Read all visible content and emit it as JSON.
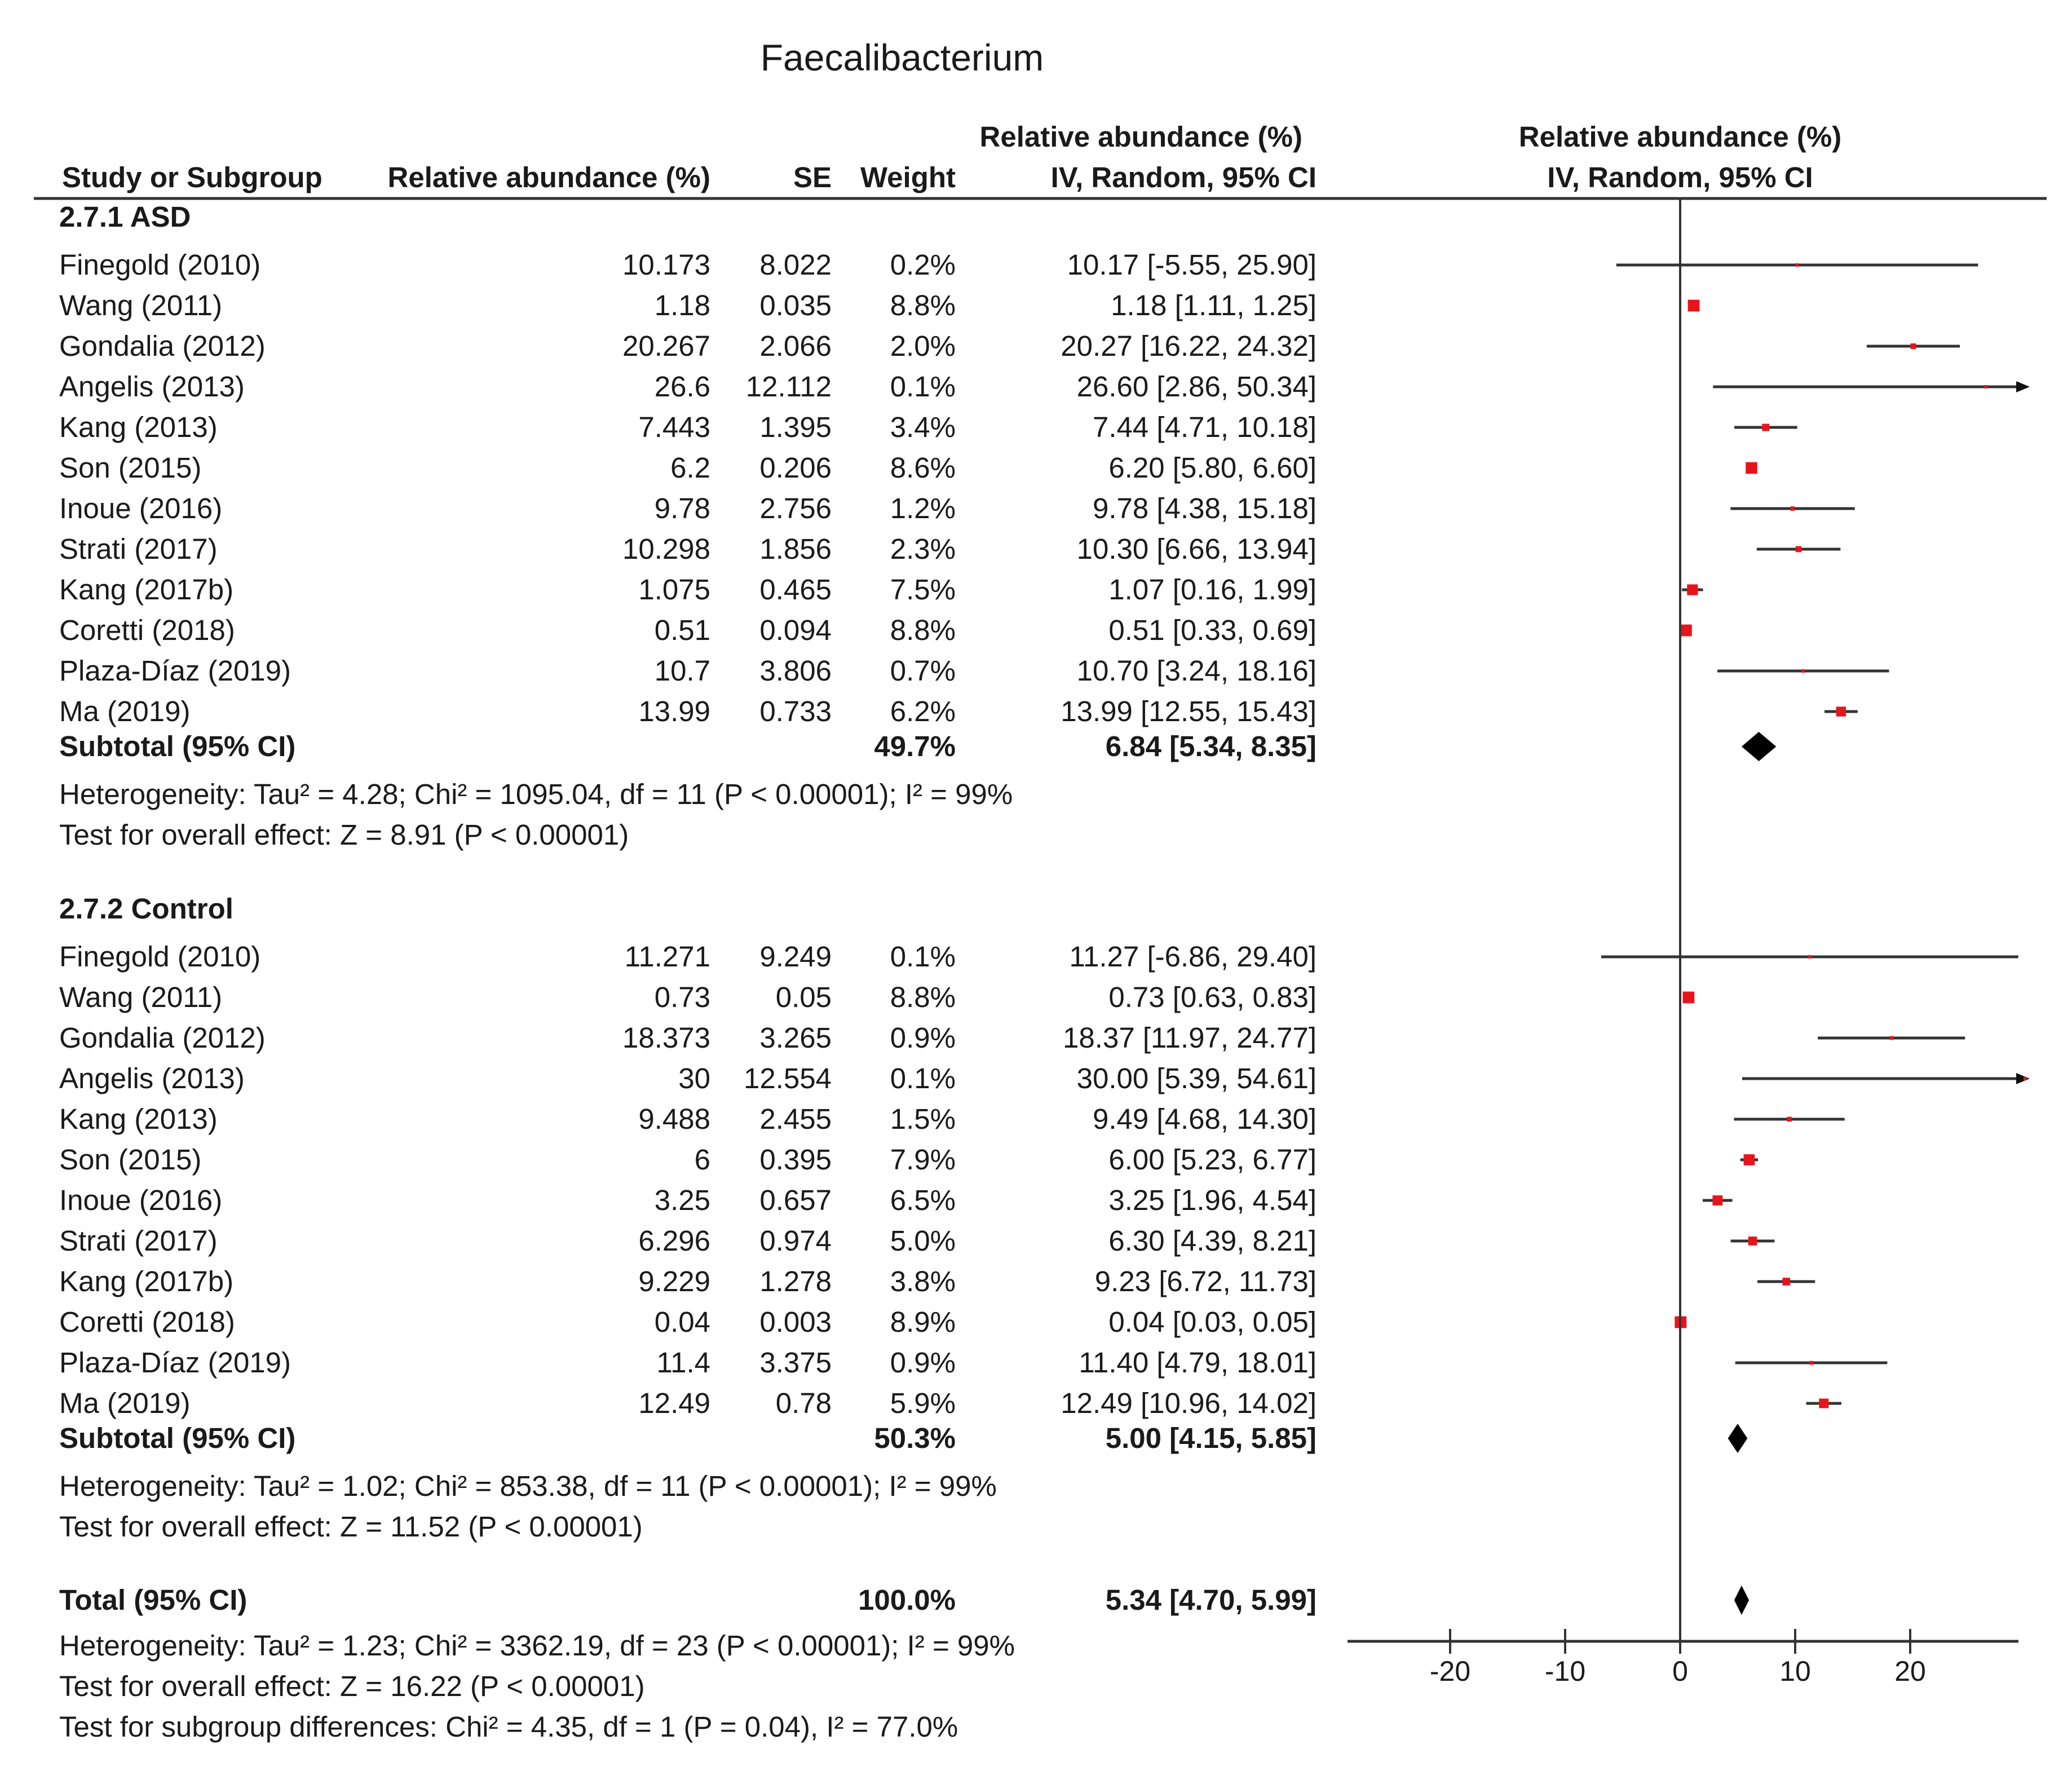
{
  "title": "Faecalibacterium",
  "header": {
    "study": "Study or Subgroup",
    "mean": "Relative abundance (%)",
    "se": "SE",
    "weight": "Weight",
    "ci_top": "Relative abundance (%)",
    "ci_bottom": "IV, Random, 95% CI",
    "plot_top": "Relative abundance (%)",
    "plot_bottom": "IV, Random, 95% CI"
  },
  "groups": [
    {
      "name": "2.7.1 ASD",
      "studies": [
        {
          "study": "Finegold (2010)",
          "mean": "10.173",
          "se": "8.022",
          "weight": "0.2%",
          "ci": "10.17 [-5.55, 25.90]"
        },
        {
          "study": "Wang (2011)",
          "mean": "1.18",
          "se": "0.035",
          "weight": "8.8%",
          "ci": "1.18 [1.11, 1.25]"
        },
        {
          "study": "Gondalia (2012)",
          "mean": "20.267",
          "se": "2.066",
          "weight": "2.0%",
          "ci": "20.27 [16.22, 24.32]"
        },
        {
          "study": "Angelis (2013)",
          "mean": "26.6",
          "se": "12.112",
          "weight": "0.1%",
          "ci": "26.60 [2.86, 50.34]"
        },
        {
          "study": "Kang (2013)",
          "mean": "7.443",
          "se": "1.395",
          "weight": "3.4%",
          "ci": "7.44 [4.71, 10.18]"
        },
        {
          "study": "Son (2015)",
          "mean": "6.2",
          "se": "0.206",
          "weight": "8.6%",
          "ci": "6.20 [5.80, 6.60]"
        },
        {
          "study": "Inoue (2016)",
          "mean": "9.78",
          "se": "2.756",
          "weight": "1.2%",
          "ci": "9.78 [4.38, 15.18]"
        },
        {
          "study": "Strati (2017)",
          "mean": "10.298",
          "se": "1.856",
          "weight": "2.3%",
          "ci": "10.30 [6.66, 13.94]"
        },
        {
          "study": "Kang (2017b)",
          "mean": "1.075",
          "se": "0.465",
          "weight": "7.5%",
          "ci": "1.07 [0.16, 1.99]"
        },
        {
          "study": "Coretti (2018)",
          "mean": "0.51",
          "se": "0.094",
          "weight": "8.8%",
          "ci": "0.51 [0.33, 0.69]"
        },
        {
          "study": "Plaza-Díaz (2019)",
          "mean": "10.7",
          "se": "3.806",
          "weight": "0.7%",
          "ci": "10.70 [3.24, 18.16]"
        },
        {
          "study": "Ma (2019)",
          "mean": "13.99",
          "se": "0.733",
          "weight": "6.2%",
          "ci": "13.99 [12.55, 15.43]"
        }
      ],
      "subtotal": {
        "label": "Subtotal (95% CI)",
        "weight": "49.7%",
        "ci": "6.84 [5.34, 8.35]"
      },
      "heterogeneity": "Heterogeneity: Tau² = 4.28; Chi² = 1095.04, df = 11 (P < 0.00001); I² = 99%",
      "overall": "Test for overall effect: Z = 8.91 (P < 0.00001)"
    },
    {
      "name": "2.7.2 Control",
      "studies": [
        {
          "study": "Finegold (2010)",
          "mean": "11.271",
          "se": "9.249",
          "weight": "0.1%",
          "ci": "11.27 [-6.86, 29.40]"
        },
        {
          "study": "Wang (2011)",
          "mean": "0.73",
          "se": "0.05",
          "weight": "8.8%",
          "ci": "0.73 [0.63, 0.83]"
        },
        {
          "study": "Gondalia (2012)",
          "mean": "18.373",
          "se": "3.265",
          "weight": "0.9%",
          "ci": "18.37 [11.97, 24.77]"
        },
        {
          "study": "Angelis (2013)",
          "mean": "30",
          "se": "12.554",
          "weight": "0.1%",
          "ci": "30.00 [5.39, 54.61]"
        },
        {
          "study": "Kang (2013)",
          "mean": "9.488",
          "se": "2.455",
          "weight": "1.5%",
          "ci": "9.49 [4.68, 14.30]"
        },
        {
          "study": "Son (2015)",
          "mean": "6",
          "se": "0.395",
          "weight": "7.9%",
          "ci": "6.00 [5.23, 6.77]"
        },
        {
          "study": "Inoue (2016)",
          "mean": "3.25",
          "se": "0.657",
          "weight": "6.5%",
          "ci": "3.25 [1.96, 4.54]"
        },
        {
          "study": "Strati (2017)",
          "mean": "6.296",
          "se": "0.974",
          "weight": "5.0%",
          "ci": "6.30 [4.39, 8.21]"
        },
        {
          "study": "Kang (2017b)",
          "mean": "9.229",
          "se": "1.278",
          "weight": "3.8%",
          "ci": "9.23 [6.72, 11.73]"
        },
        {
          "study": "Coretti (2018)",
          "mean": "0.04",
          "se": "0.003",
          "weight": "8.9%",
          "ci": "0.04 [0.03, 0.05]"
        },
        {
          "study": "Plaza-Díaz (2019)",
          "mean": "11.4",
          "se": "3.375",
          "weight": "0.9%",
          "ci": "11.40 [4.79, 18.01]"
        },
        {
          "study": "Ma (2019)",
          "mean": "12.49",
          "se": "0.78",
          "weight": "5.9%",
          "ci": "12.49 [10.96, 14.02]"
        }
      ],
      "subtotal": {
        "label": "Subtotal (95% CI)",
        "weight": "50.3%",
        "ci": "5.00 [4.15, 5.85]"
      },
      "heterogeneity": "Heterogeneity: Tau² = 1.02; Chi² = 853.38, df = 11 (P < 0.00001); I² = 99%",
      "overall": "Test for overall effect: Z = 11.52 (P < 0.00001)"
    }
  ],
  "total": {
    "label": "Total (95% CI)",
    "weight": "100.0%",
    "ci": "5.34 [4.70, 5.99]",
    "heterogeneity": "Heterogeneity: Tau² = 1.23; Chi² = 3362.19, df = 23 (P < 0.00001); I² = 99%",
    "overall": "Test for overall effect: Z = 16.22 (P < 0.00001)",
    "subgroup": "Test for subgroup differences: Chi² = 4.35, df = 1 (P = 0.04), I² = 77.0%"
  },
  "chart_data": {
    "type": "forest",
    "title": "Faecalibacterium",
    "xlabel": "Relative abundance (%) IV, Random, 95% CI",
    "xlim": [
      -30,
      30
    ],
    "xticks": [
      -20,
      -10,
      0,
      10,
      20
    ],
    "tick_labels": [
      "-20",
      "-10",
      "0",
      "10",
      "20"
    ],
    "colors": {
      "marker": "#e8141c",
      "line": "#333333",
      "diamond": "#000000"
    },
    "series": [
      {
        "name": "2.7.1 ASD",
        "points": [
          {
            "mean": 10.17,
            "lo": -5.55,
            "hi": 25.9,
            "weight": 0.2
          },
          {
            "mean": 1.18,
            "lo": 1.11,
            "hi": 1.25,
            "weight": 8.8
          },
          {
            "mean": 20.27,
            "lo": 16.22,
            "hi": 24.32,
            "weight": 2.0
          },
          {
            "mean": 26.6,
            "lo": 2.86,
            "hi": 50.34,
            "weight": 0.1
          },
          {
            "mean": 7.44,
            "lo": 4.71,
            "hi": 10.18,
            "weight": 3.4
          },
          {
            "mean": 6.2,
            "lo": 5.8,
            "hi": 6.6,
            "weight": 8.6
          },
          {
            "mean": 9.78,
            "lo": 4.38,
            "hi": 15.18,
            "weight": 1.2
          },
          {
            "mean": 10.3,
            "lo": 6.66,
            "hi": 13.94,
            "weight": 2.3
          },
          {
            "mean": 1.07,
            "lo": 0.16,
            "hi": 1.99,
            "weight": 7.5
          },
          {
            "mean": 0.51,
            "lo": 0.33,
            "hi": 0.69,
            "weight": 8.8
          },
          {
            "mean": 10.7,
            "lo": 3.24,
            "hi": 18.16,
            "weight": 0.7
          },
          {
            "mean": 13.99,
            "lo": 12.55,
            "hi": 15.43,
            "weight": 6.2
          }
        ],
        "subtotal": {
          "mean": 6.84,
          "lo": 5.34,
          "hi": 8.35
        }
      },
      {
        "name": "2.7.2 Control",
        "points": [
          {
            "mean": 11.27,
            "lo": -6.86,
            "hi": 29.4,
            "weight": 0.1
          },
          {
            "mean": 0.73,
            "lo": 0.63,
            "hi": 0.83,
            "weight": 8.8
          },
          {
            "mean": 18.37,
            "lo": 11.97,
            "hi": 24.77,
            "weight": 0.9
          },
          {
            "mean": 30.0,
            "lo": 5.39,
            "hi": 54.61,
            "weight": 0.1
          },
          {
            "mean": 9.49,
            "lo": 4.68,
            "hi": 14.3,
            "weight": 1.5
          },
          {
            "mean": 6.0,
            "lo": 5.23,
            "hi": 6.77,
            "weight": 7.9
          },
          {
            "mean": 3.25,
            "lo": 1.96,
            "hi": 4.54,
            "weight": 6.5
          },
          {
            "mean": 6.3,
            "lo": 4.39,
            "hi": 8.21,
            "weight": 5.0
          },
          {
            "mean": 9.23,
            "lo": 6.72,
            "hi": 11.73,
            "weight": 3.8
          },
          {
            "mean": 0.04,
            "lo": 0.03,
            "hi": 0.05,
            "weight": 8.9
          },
          {
            "mean": 11.4,
            "lo": 4.79,
            "hi": 18.01,
            "weight": 0.9
          },
          {
            "mean": 12.49,
            "lo": 10.96,
            "hi": 14.02,
            "weight": 5.9
          }
        ],
        "subtotal": {
          "mean": 5.0,
          "lo": 4.15,
          "hi": 5.85
        }
      }
    ],
    "total": {
      "mean": 5.34,
      "lo": 4.7,
      "hi": 5.99
    }
  }
}
